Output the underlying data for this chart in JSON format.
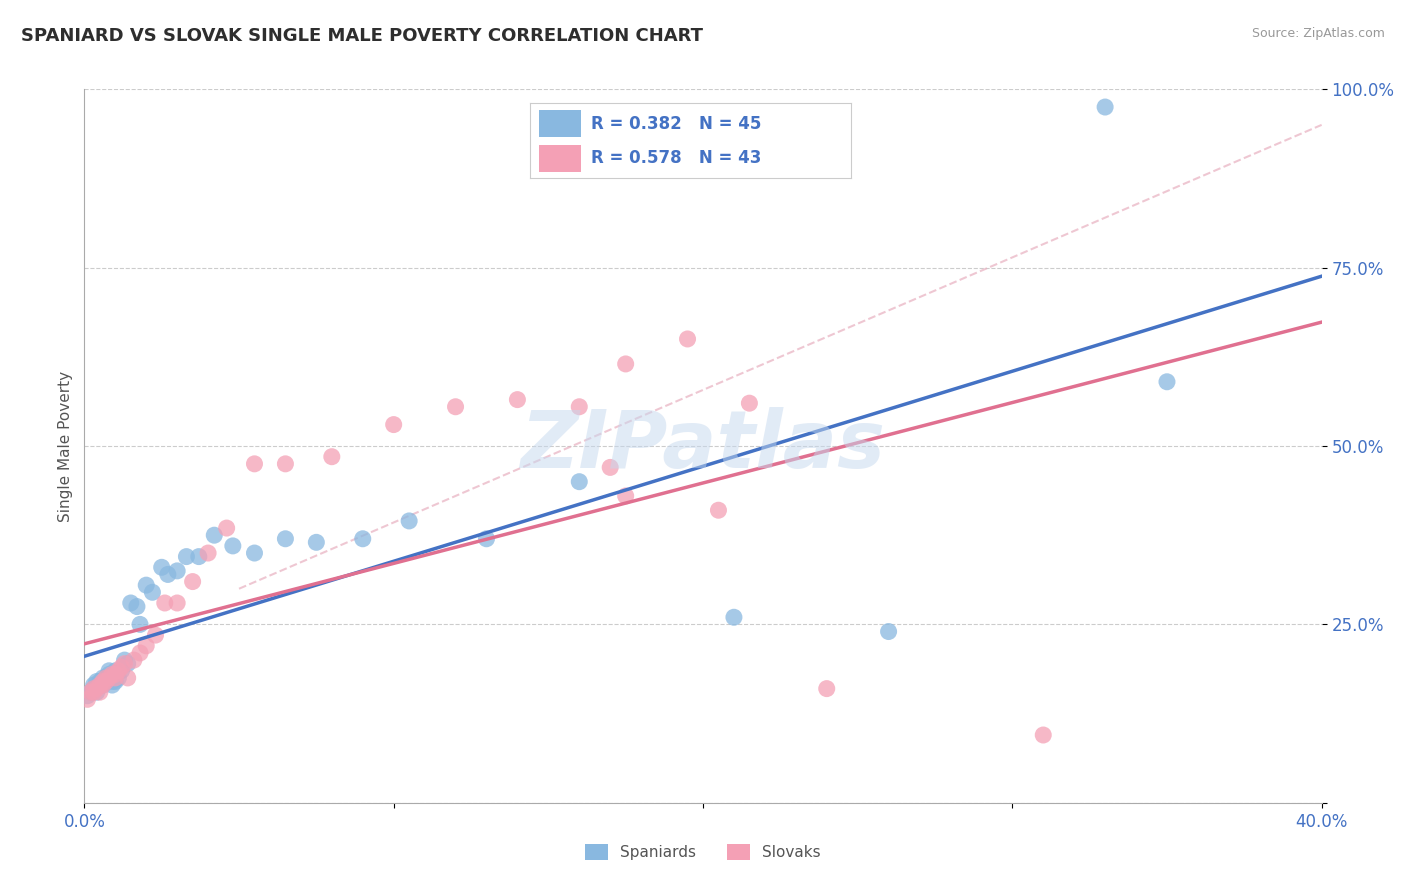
{
  "title": "SPANIARD VS SLOVAK SINGLE MALE POVERTY CORRELATION CHART",
  "source": "Source: ZipAtlas.com",
  "ylabel": "Single Male Poverty",
  "xlim": [
    0.0,
    0.4
  ],
  "ylim": [
    0.0,
    1.0
  ],
  "xticks": [
    0.0,
    0.1,
    0.2,
    0.3,
    0.4
  ],
  "yticks": [
    0.0,
    0.25,
    0.5,
    0.75,
    1.0
  ],
  "xtick_labels": [
    "0.0%",
    "",
    "",
    "",
    "40.0%"
  ],
  "ytick_labels": [
    "",
    "25.0%",
    "50.0%",
    "75.0%",
    "100.0%"
  ],
  "spaniard_color": "#89b8e0",
  "slovak_color": "#f4a0b5",
  "spaniard_line_color": "#4472c4",
  "slovak_line_color": "#e07090",
  "legend_R_spaniard": "R = 0.382",
  "legend_N_spaniard": "N = 45",
  "legend_R_slovak": "R = 0.578",
  "legend_N_slovak": "N = 43",
  "spaniard_x": [
    0.001,
    0.002,
    0.003,
    0.003,
    0.004,
    0.004,
    0.005,
    0.005,
    0.006,
    0.006,
    0.007,
    0.007,
    0.008,
    0.008,
    0.009,
    0.009,
    0.01,
    0.01,
    0.011,
    0.012,
    0.013,
    0.014,
    0.015,
    0.017,
    0.018,
    0.02,
    0.022,
    0.025,
    0.027,
    0.03,
    0.033,
    0.037,
    0.042,
    0.048,
    0.055,
    0.065,
    0.075,
    0.09,
    0.105,
    0.13,
    0.16,
    0.21,
    0.26,
    0.33,
    0.35
  ],
  "spaniard_y": [
    0.15,
    0.155,
    0.16,
    0.165,
    0.155,
    0.17,
    0.165,
    0.17,
    0.175,
    0.165,
    0.175,
    0.175,
    0.18,
    0.185,
    0.17,
    0.165,
    0.17,
    0.185,
    0.175,
    0.185,
    0.2,
    0.195,
    0.28,
    0.275,
    0.25,
    0.305,
    0.295,
    0.33,
    0.32,
    0.325,
    0.345,
    0.345,
    0.375,
    0.36,
    0.35,
    0.37,
    0.365,
    0.37,
    0.395,
    0.37,
    0.45,
    0.26,
    0.24,
    0.975,
    0.59
  ],
  "slovak_x": [
    0.001,
    0.002,
    0.003,
    0.003,
    0.004,
    0.005,
    0.005,
    0.006,
    0.006,
    0.007,
    0.007,
    0.008,
    0.009,
    0.01,
    0.01,
    0.011,
    0.012,
    0.013,
    0.014,
    0.016,
    0.018,
    0.02,
    0.023,
    0.026,
    0.03,
    0.035,
    0.04,
    0.046,
    0.055,
    0.065,
    0.08,
    0.1,
    0.12,
    0.14,
    0.16,
    0.175,
    0.195,
    0.215,
    0.24,
    0.17,
    0.175,
    0.205,
    0.31
  ],
  "slovak_y": [
    0.145,
    0.155,
    0.155,
    0.16,
    0.16,
    0.155,
    0.165,
    0.165,
    0.17,
    0.17,
    0.175,
    0.175,
    0.18,
    0.175,
    0.18,
    0.185,
    0.19,
    0.195,
    0.175,
    0.2,
    0.21,
    0.22,
    0.235,
    0.28,
    0.28,
    0.31,
    0.35,
    0.385,
    0.475,
    0.475,
    0.485,
    0.53,
    0.555,
    0.565,
    0.555,
    0.615,
    0.65,
    0.56,
    0.16,
    0.47,
    0.43,
    0.41,
    0.095
  ],
  "background_color": "#ffffff",
  "grid_color": "#cccccc",
  "watermark_text": "ZIPatlas",
  "title_color": "#2e2e2e",
  "tick_color": "#4472c4",
  "ref_line_color": "#e8b0c0"
}
